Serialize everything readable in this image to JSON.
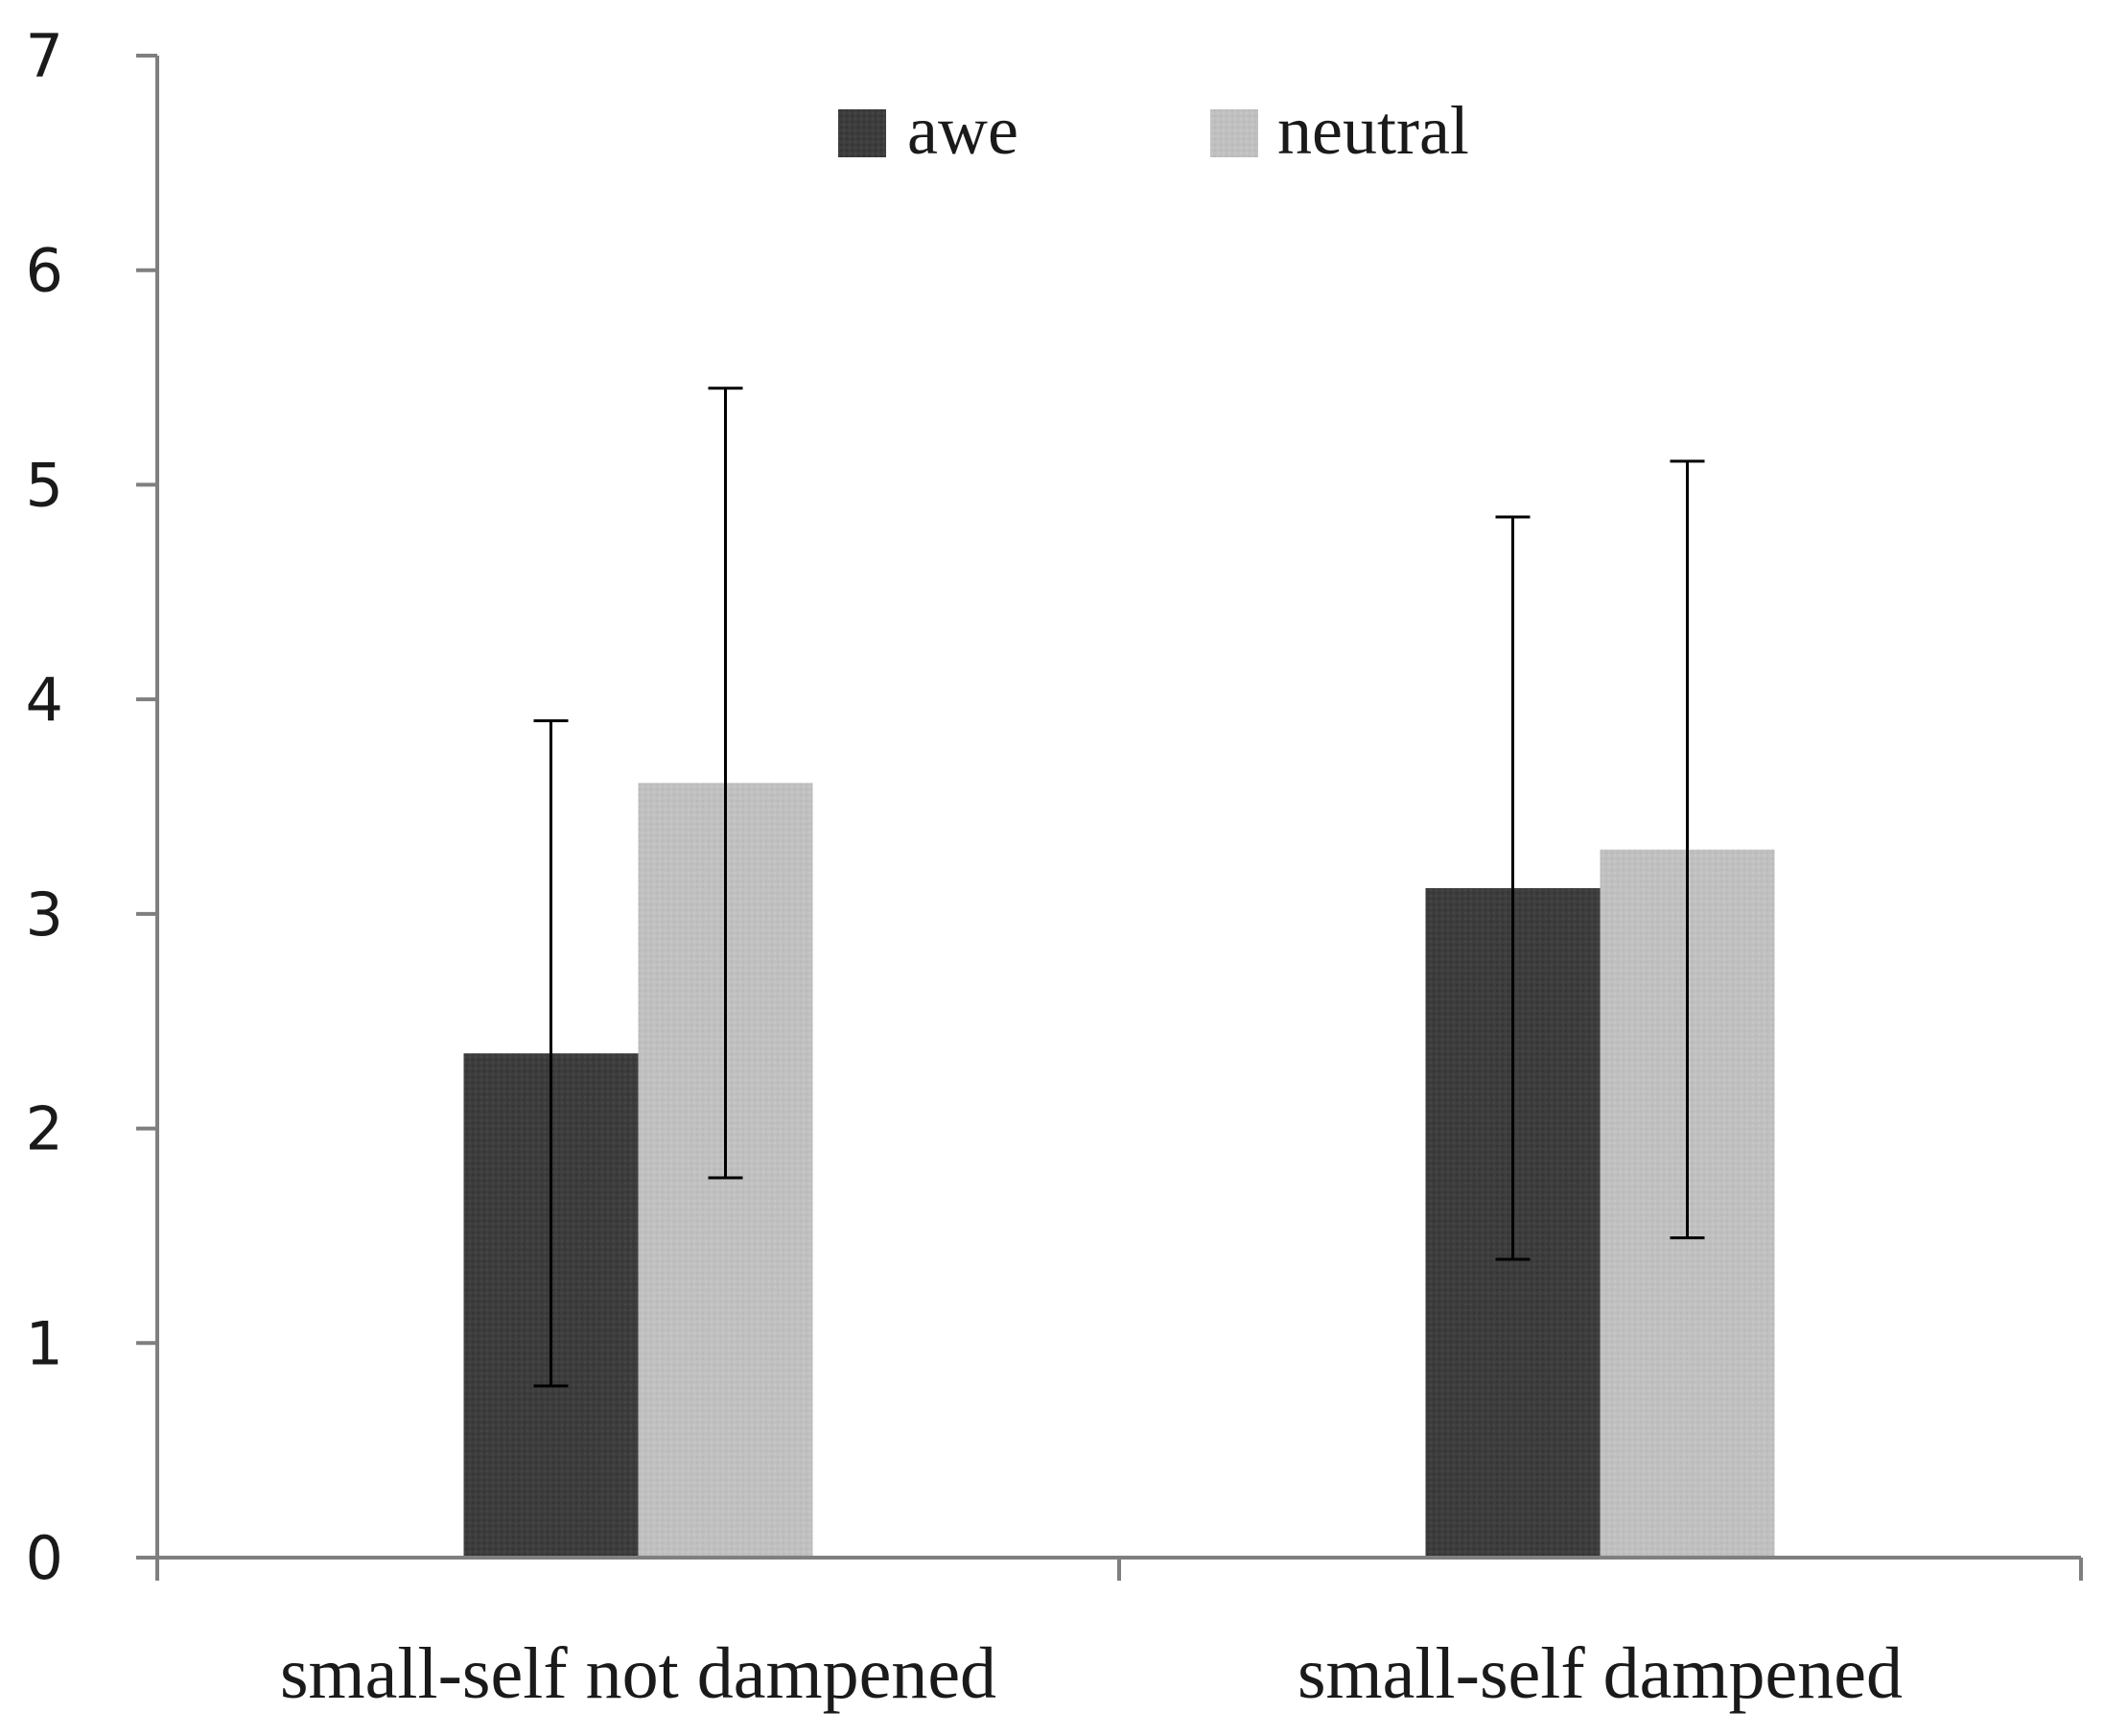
{
  "chart_data": {
    "type": "bar",
    "title": "",
    "xlabel": "",
    "ylabel": "",
    "ylim": [
      0,
      7
    ],
    "yticks": [
      "0",
      "1",
      "2",
      "3",
      "4",
      "5",
      "6",
      "7"
    ],
    "categories": [
      "small-self not dampened",
      "small-self dampened"
    ],
    "series": [
      {
        "name": "awe",
        "color": "#3d3d3d",
        "values": [
          2.35,
          3.12
        ],
        "error": [
          1.55,
          1.73
        ]
      },
      {
        "name": "neutral",
        "color": "#c0c0c0",
        "values": [
          3.61,
          3.3
        ],
        "error": [
          1.84,
          1.81
        ]
      }
    ],
    "legend_position": "top-center",
    "axis_color": "#7f7f7f",
    "errorbar_color": "#000000"
  }
}
